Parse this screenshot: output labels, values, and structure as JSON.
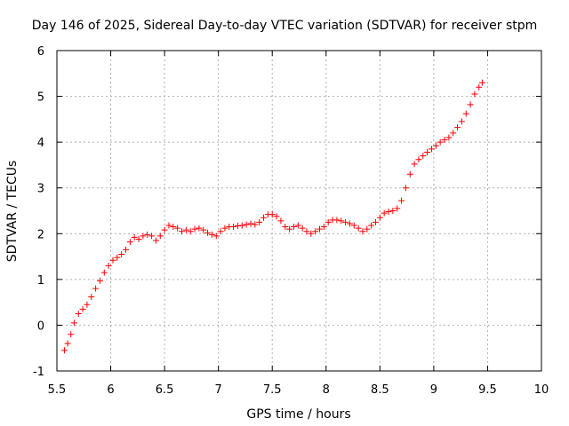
{
  "chart_data": {
    "type": "scatter",
    "marker": "plus",
    "title": "Day 146 of 2025, Sidereal Day-to-day VTEC variation (SDTVAR) for receiver stpm",
    "xlabel": "GPS time / hours",
    "ylabel": "SDTVAR / TECUs",
    "xlim": [
      5.5,
      10
    ],
    "ylim": [
      -1,
      6
    ],
    "grid": true,
    "legend": "none",
    "color": "#ff0000",
    "x_ticks": [
      "5.5",
      "6",
      "6.5",
      "7",
      "7.5",
      "8",
      "8.5",
      "9",
      "9.5",
      "10"
    ],
    "y_ticks": [
      "-1",
      "0",
      "1",
      "2",
      "3",
      "4",
      "5",
      "6"
    ],
    "points": [
      [
        5.57,
        -0.55
      ],
      [
        5.6,
        -0.4
      ],
      [
        5.63,
        -0.2
      ],
      [
        5.66,
        0.05
      ],
      [
        5.7,
        0.25
      ],
      [
        5.74,
        0.35
      ],
      [
        5.78,
        0.45
      ],
      [
        5.82,
        0.62
      ],
      [
        5.86,
        0.8
      ],
      [
        5.9,
        0.97
      ],
      [
        5.94,
        1.15
      ],
      [
        5.98,
        1.3
      ],
      [
        6.02,
        1.42
      ],
      [
        6.06,
        1.48
      ],
      [
        6.1,
        1.55
      ],
      [
        6.14,
        1.65
      ],
      [
        6.18,
        1.82
      ],
      [
        6.22,
        1.92
      ],
      [
        6.26,
        1.88
      ],
      [
        6.3,
        1.95
      ],
      [
        6.34,
        1.98
      ],
      [
        6.38,
        1.95
      ],
      [
        6.42,
        1.85
      ],
      [
        6.46,
        1.95
      ],
      [
        6.5,
        2.08
      ],
      [
        6.54,
        2.18
      ],
      [
        6.58,
        2.15
      ],
      [
        6.62,
        2.12
      ],
      [
        6.66,
        2.05
      ],
      [
        6.7,
        2.08
      ],
      [
        6.74,
        2.05
      ],
      [
        6.78,
        2.1
      ],
      [
        6.82,
        2.12
      ],
      [
        6.86,
        2.08
      ],
      [
        6.9,
        2.02
      ],
      [
        6.94,
        1.98
      ],
      [
        6.98,
        1.95
      ],
      [
        7.02,
        2.05
      ],
      [
        7.06,
        2.12
      ],
      [
        7.1,
        2.15
      ],
      [
        7.14,
        2.15
      ],
      [
        7.18,
        2.17
      ],
      [
        7.22,
        2.18
      ],
      [
        7.26,
        2.2
      ],
      [
        7.3,
        2.22
      ],
      [
        7.34,
        2.2
      ],
      [
        7.38,
        2.25
      ],
      [
        7.42,
        2.35
      ],
      [
        7.46,
        2.42
      ],
      [
        7.5,
        2.42
      ],
      [
        7.54,
        2.38
      ],
      [
        7.58,
        2.28
      ],
      [
        7.62,
        2.15
      ],
      [
        7.66,
        2.1
      ],
      [
        7.7,
        2.15
      ],
      [
        7.74,
        2.18
      ],
      [
        7.78,
        2.12
      ],
      [
        7.82,
        2.05
      ],
      [
        7.86,
        2.0
      ],
      [
        7.9,
        2.05
      ],
      [
        7.94,
        2.1
      ],
      [
        7.98,
        2.15
      ],
      [
        8.02,
        2.25
      ],
      [
        8.06,
        2.3
      ],
      [
        8.1,
        2.3
      ],
      [
        8.14,
        2.28
      ],
      [
        8.18,
        2.25
      ],
      [
        8.22,
        2.22
      ],
      [
        8.26,
        2.18
      ],
      [
        8.3,
        2.12
      ],
      [
        8.34,
        2.05
      ],
      [
        8.38,
        2.1
      ],
      [
        8.42,
        2.18
      ],
      [
        8.46,
        2.25
      ],
      [
        8.5,
        2.35
      ],
      [
        8.54,
        2.45
      ],
      [
        8.58,
        2.48
      ],
      [
        8.62,
        2.5
      ],
      [
        8.66,
        2.55
      ],
      [
        8.7,
        2.72
      ],
      [
        8.74,
        3.0
      ],
      [
        8.78,
        3.3
      ],
      [
        8.82,
        3.52
      ],
      [
        8.86,
        3.62
      ],
      [
        8.9,
        3.7
      ],
      [
        8.94,
        3.78
      ],
      [
        8.98,
        3.85
      ],
      [
        9.02,
        3.92
      ],
      [
        9.06,
        4.0
      ],
      [
        9.1,
        4.05
      ],
      [
        9.14,
        4.1
      ],
      [
        9.18,
        4.2
      ],
      [
        9.22,
        4.32
      ],
      [
        9.26,
        4.45
      ],
      [
        9.3,
        4.62
      ],
      [
        9.34,
        4.82
      ],
      [
        9.38,
        5.05
      ],
      [
        9.42,
        5.2
      ],
      [
        9.45,
        5.3
      ]
    ]
  }
}
